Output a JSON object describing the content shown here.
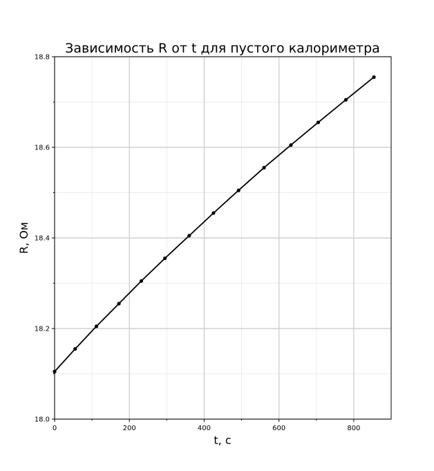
{
  "chart_data": {
    "type": "line",
    "title": "Зависимость R от t для пустого калориметра",
    "xlabel": "t, с",
    "ylabel": "R, Ом",
    "xlim": [
      0,
      900
    ],
    "ylim": [
      18.0,
      18.8
    ],
    "x_ticks": [
      0,
      200,
      400,
      600,
      800
    ],
    "x_tick_labels": [
      "0",
      "200",
      "400",
      "600",
      "800"
    ],
    "y_ticks": [
      18.0,
      18.2,
      18.4,
      18.6,
      18.8
    ],
    "y_tick_labels": [
      "18.0",
      "18.2",
      "18.4",
      "18.6",
      "18.8"
    ],
    "x_minor_ticks": [
      100,
      300,
      500,
      700
    ],
    "y_minor_ticks": [
      18.1,
      18.3,
      18.5,
      18.7
    ],
    "grid": true,
    "colors": {
      "line": "#000000",
      "marker": "#000000",
      "grid": "#d0d0d0"
    },
    "series": [
      {
        "x": [
          0,
          55,
          112,
          172,
          232,
          295,
          360,
          425,
          492,
          560,
          632,
          705,
          779,
          854
        ],
        "y": [
          18.105,
          18.155,
          18.205,
          18.255,
          18.305,
          18.355,
          18.405,
          18.455,
          18.505,
          18.555,
          18.605,
          18.655,
          18.705,
          18.755
        ]
      }
    ]
  }
}
